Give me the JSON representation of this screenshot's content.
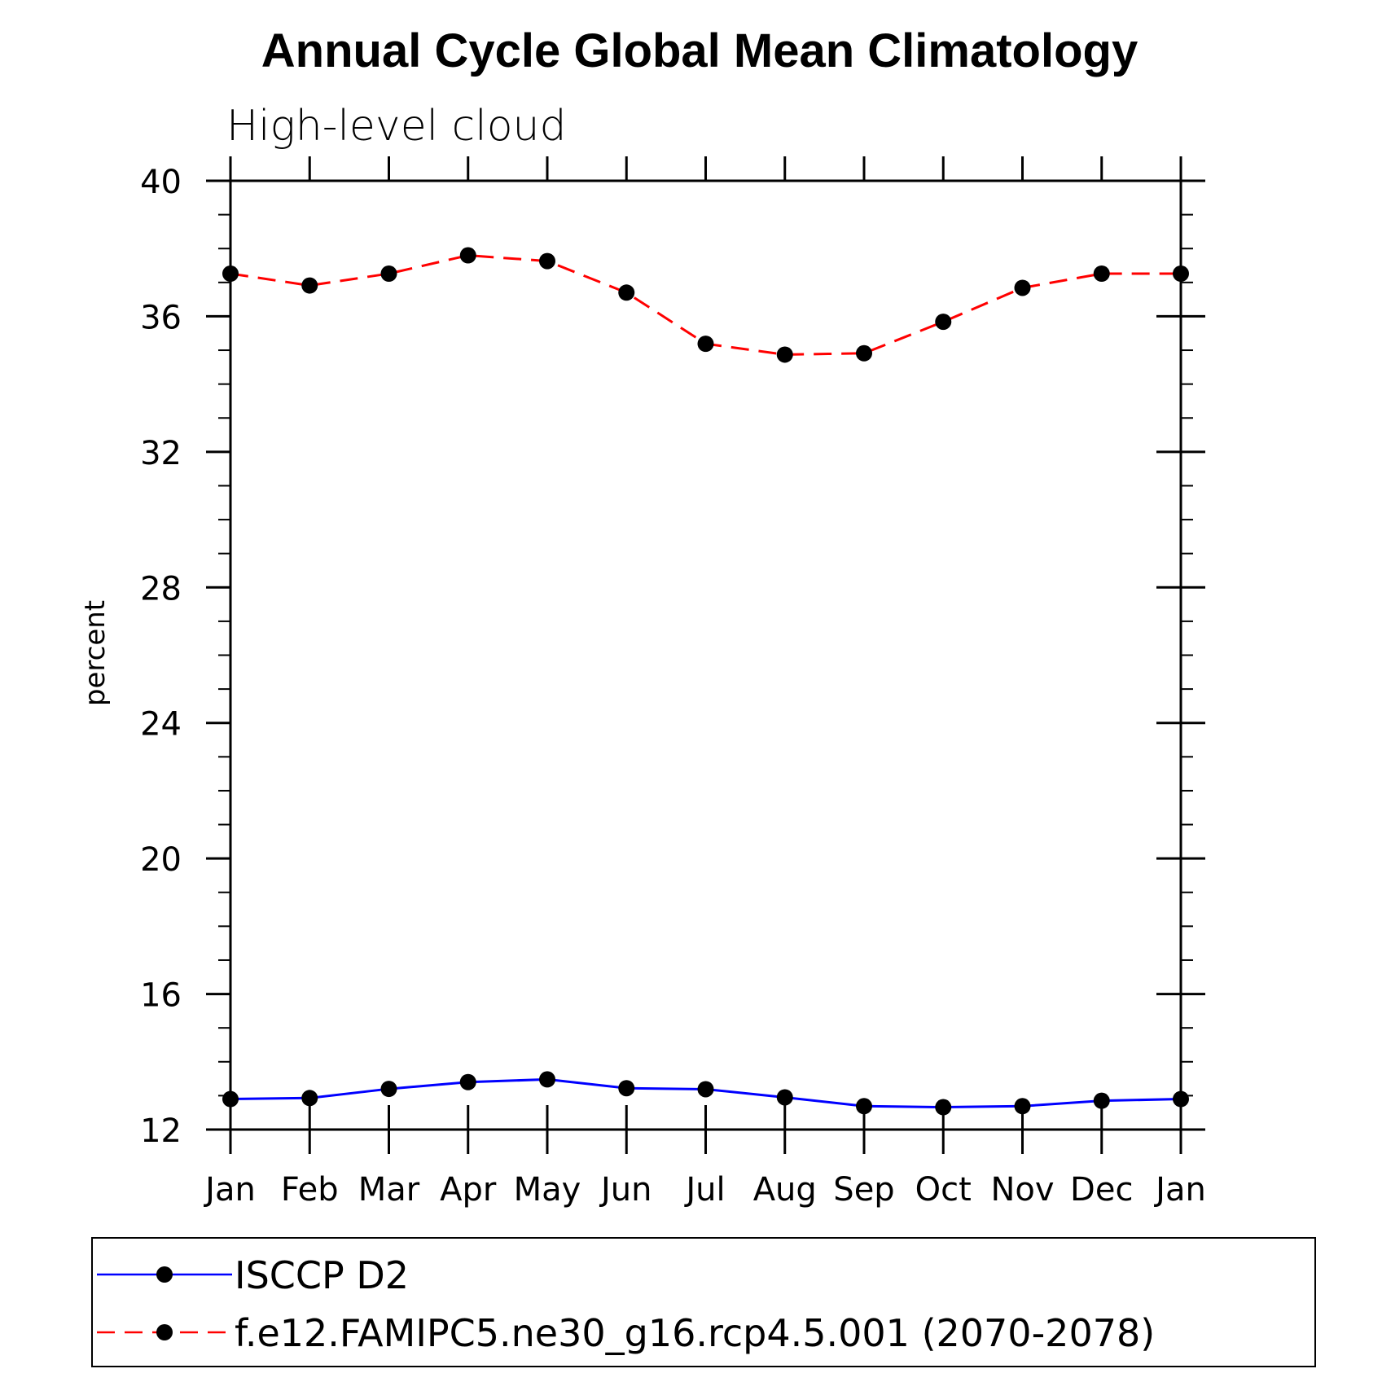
{
  "chart_data": {
    "type": "line",
    "title": "Annual Cycle Global Mean Climatology",
    "subtitle": "High-level cloud",
    "xlabel": "",
    "ylabel": "percent",
    "categories": [
      "Jan",
      "Feb",
      "Mar",
      "Apr",
      "May",
      "Jun",
      "Jul",
      "Aug",
      "Sep",
      "Oct",
      "Nov",
      "Dec",
      "Jan"
    ],
    "ylim": [
      12,
      40
    ],
    "yticks": [
      12,
      16,
      20,
      24,
      28,
      32,
      36,
      40
    ],
    "ytick_labels": [
      "12",
      "16",
      "20",
      "24",
      "28",
      "32",
      "36",
      "40"
    ],
    "grid": false,
    "legend_position": "bottom",
    "series": [
      {
        "name": "ISCCP D2",
        "color": "#0000ff",
        "line_style": "solid",
        "marker": "filled-circle",
        "values": [
          12.9,
          12.93,
          13.2,
          13.4,
          13.48,
          13.22,
          13.19,
          12.95,
          12.69,
          12.66,
          12.69,
          12.85,
          12.9
        ]
      },
      {
        "name": "f.e12.FAMIPC5.ne30_g16.rcp4.5.001 (2070-2078)",
        "color": "#ff0000",
        "line_style": "dashed",
        "marker": "filled-circle",
        "values": [
          37.26,
          36.91,
          37.26,
          37.8,
          37.63,
          36.7,
          35.19,
          34.87,
          34.91,
          35.84,
          36.84,
          37.26,
          37.26
        ]
      }
    ]
  }
}
